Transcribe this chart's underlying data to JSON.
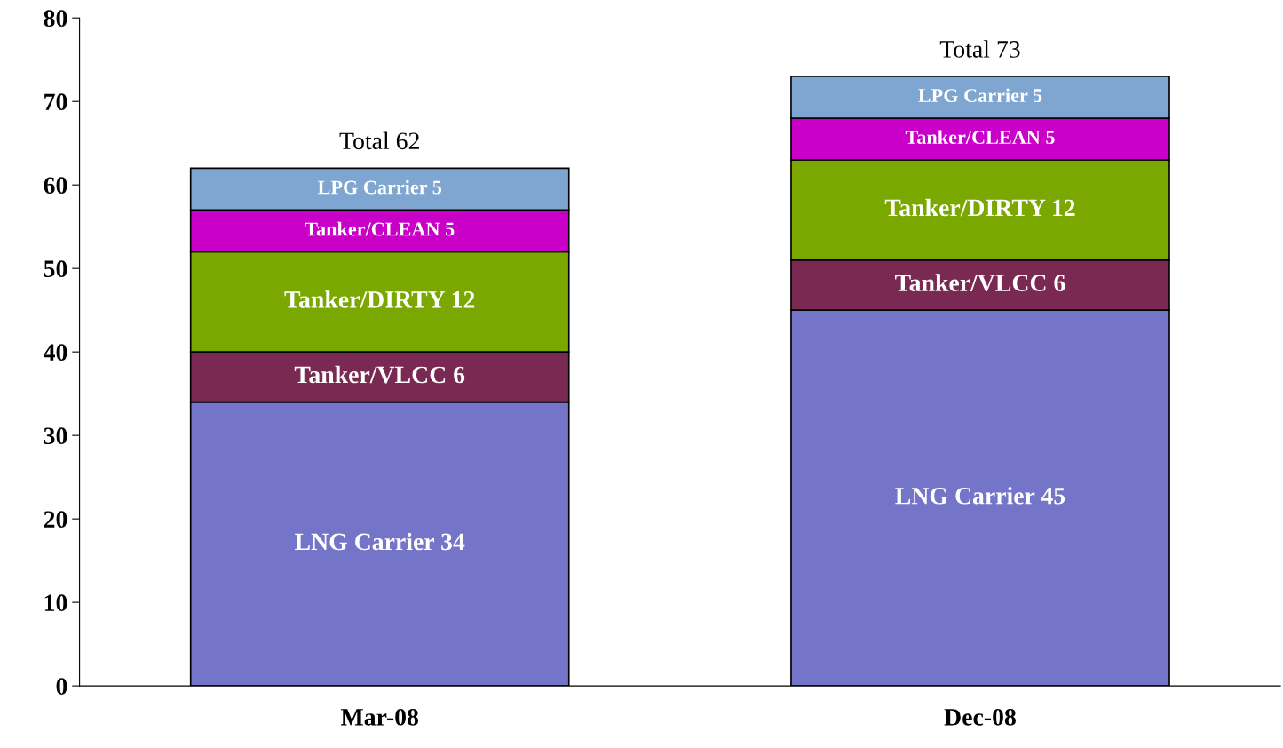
{
  "chart_data": {
    "type": "bar",
    "stacked": true,
    "categories": [
      "Mar-08",
      "Dec-08"
    ],
    "series": [
      {
        "color": "#7474c8",
        "values": [
          34,
          45
        ],
        "value_labels": [
          "LNG Carrier 34",
          "LNG Carrier 45"
        ]
      },
      {
        "color": "#7a2a52",
        "values": [
          6,
          6
        ],
        "value_labels": [
          "Tanker/VLCC 6",
          "Tanker/VLCC 6"
        ]
      },
      {
        "color": "#7aa800",
        "values": [
          12,
          12
        ],
        "value_labels": [
          "Tanker/DIRTY 12",
          "Tanker/DIRTY 12"
        ]
      },
      {
        "color": "#c800c8",
        "values": [
          5,
          5
        ],
        "value_labels": [
          "Tanker/CLEAN 5",
          "Tanker/CLEAN 5"
        ]
      },
      {
        "color": "#7fa6d0",
        "values": [
          5,
          5
        ],
        "value_labels": [
          "LPG Carrier 5",
          "LPG Carrier 5"
        ]
      }
    ],
    "totals": [
      "Total 62",
      "Total 73"
    ],
    "ylim": [
      0,
      80
    ],
    "yticks": [
      0,
      10,
      20,
      30,
      40,
      50,
      60,
      70,
      80
    ],
    "grid": false,
    "legend": false
  }
}
